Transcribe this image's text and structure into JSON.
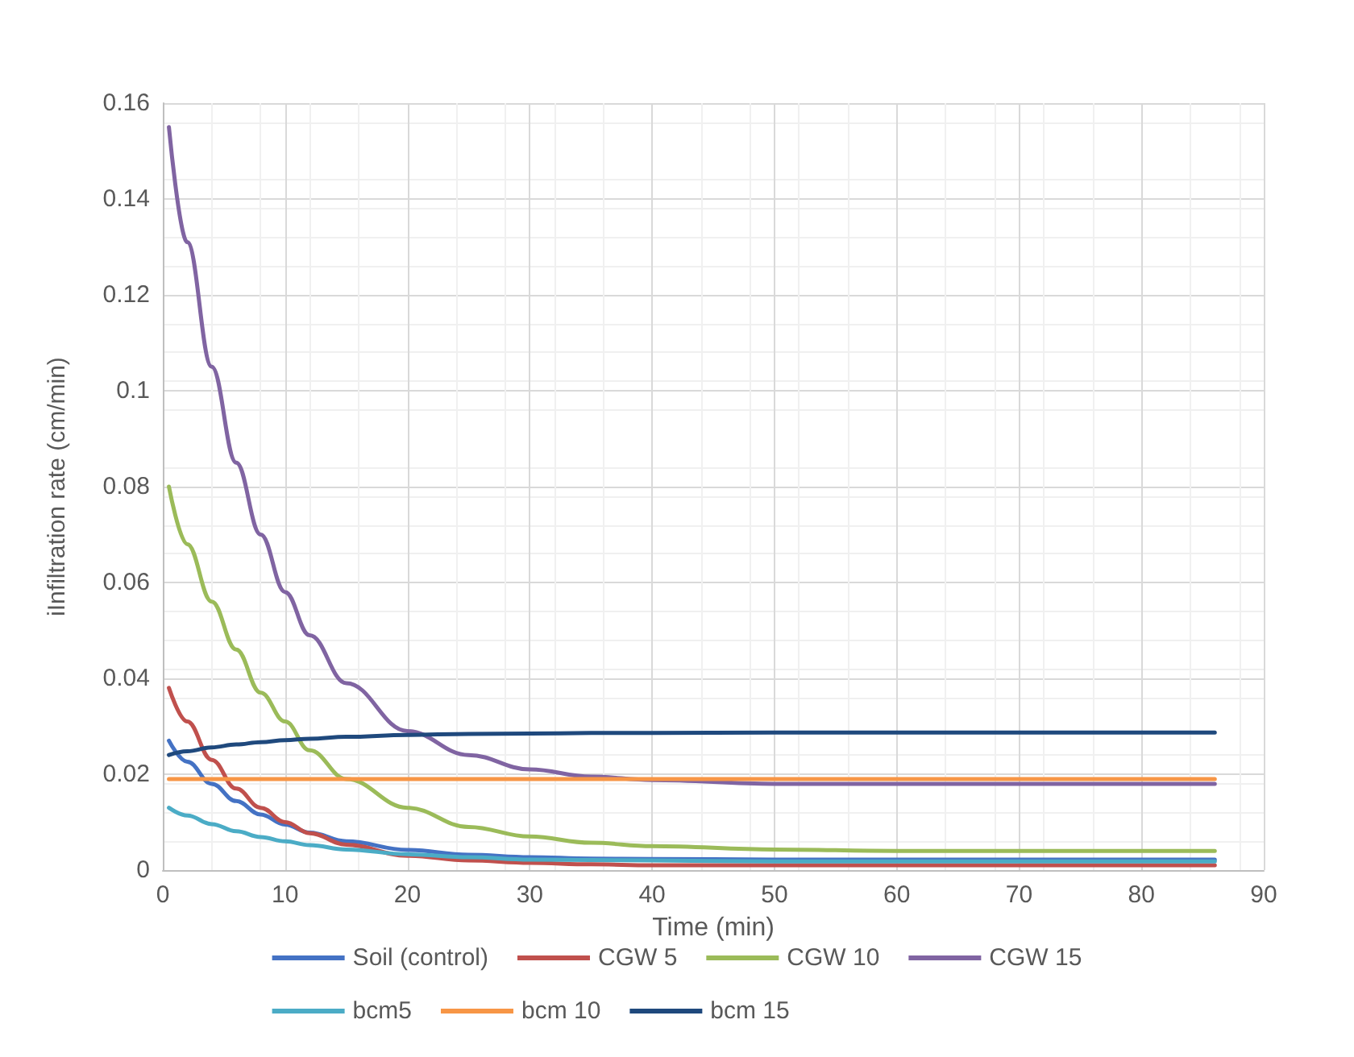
{
  "chart_data": {
    "type": "line",
    "xlabel": "Time (min)",
    "ylabel": "iInfiltration rate (cm/min)",
    "x": [
      0.5,
      2,
      4,
      6,
      8,
      10,
      12,
      15,
      20,
      25,
      30,
      35,
      40,
      50,
      60,
      70,
      80,
      86
    ],
    "series": [
      {
        "name": "Soil (control)",
        "color": "#4472c4",
        "values": [
          0.027,
          0.0226,
          0.018,
          0.0144,
          0.0116,
          0.0095,
          0.0078,
          0.006,
          0.0042,
          0.0032,
          0.0027,
          0.0024,
          0.0023,
          0.0022,
          0.0022,
          0.0022,
          0.0022,
          0.0022
        ]
      },
      {
        "name": "CGW 5",
        "color": "#c0504d",
        "values": [
          0.038,
          0.031,
          0.023,
          0.017,
          0.013,
          0.01,
          0.0077,
          0.0053,
          0.003,
          0.002,
          0.0015,
          0.0012,
          0.001,
          0.001,
          0.001,
          0.001,
          0.001,
          0.001
        ]
      },
      {
        "name": "CGW 10",
        "color": "#9bbb59",
        "values": [
          0.08,
          0.068,
          0.056,
          0.046,
          0.037,
          0.031,
          0.025,
          0.019,
          0.013,
          0.009,
          0.007,
          0.0057,
          0.005,
          0.0043,
          0.004,
          0.004,
          0.004,
          0.004
        ]
      },
      {
        "name": "CGW 15",
        "color": "#8064a2",
        "values": [
          0.155,
          0.131,
          0.105,
          0.085,
          0.07,
          0.058,
          0.049,
          0.039,
          0.029,
          0.024,
          0.021,
          0.0195,
          0.0188,
          0.018,
          0.018,
          0.018,
          0.018,
          0.018
        ]
      },
      {
        "name": "bcm5",
        "color": "#4bacc6",
        "values": [
          0.013,
          0.0114,
          0.0096,
          0.0081,
          0.0069,
          0.006,
          0.0052,
          0.0043,
          0.0033,
          0.0027,
          0.0022,
          0.0021,
          0.002,
          0.0018,
          0.0018,
          0.0018,
          0.0018,
          0.0018
        ]
      },
      {
        "name": "bcm 10",
        "color": "#f79646",
        "values": [
          0.019,
          0.019,
          0.019,
          0.019,
          0.019,
          0.019,
          0.019,
          0.019,
          0.019,
          0.019,
          0.019,
          0.019,
          0.019,
          0.019,
          0.019,
          0.019,
          0.019,
          0.019
        ]
      },
      {
        "name": "bcm 15",
        "color": "#1f497d",
        "values": [
          0.024,
          0.0248,
          0.0256,
          0.0262,
          0.0267,
          0.0271,
          0.0274,
          0.0278,
          0.0282,
          0.0284,
          0.0285,
          0.0286,
          0.0286,
          0.0287,
          0.0287,
          0.0287,
          0.0287,
          0.0287
        ]
      }
    ],
    "xlim": [
      0,
      90
    ],
    "xticks": [
      0,
      10,
      20,
      30,
      40,
      50,
      60,
      70,
      80,
      90
    ],
    "ylim": [
      0,
      0.16
    ],
    "yticks": [
      0,
      0.02,
      0.04,
      0.06,
      0.08,
      0.1,
      0.12,
      0.14,
      0.16
    ],
    "grid": true,
    "legend": "bottom",
    "marker": "none",
    "line_style": "solid"
  }
}
